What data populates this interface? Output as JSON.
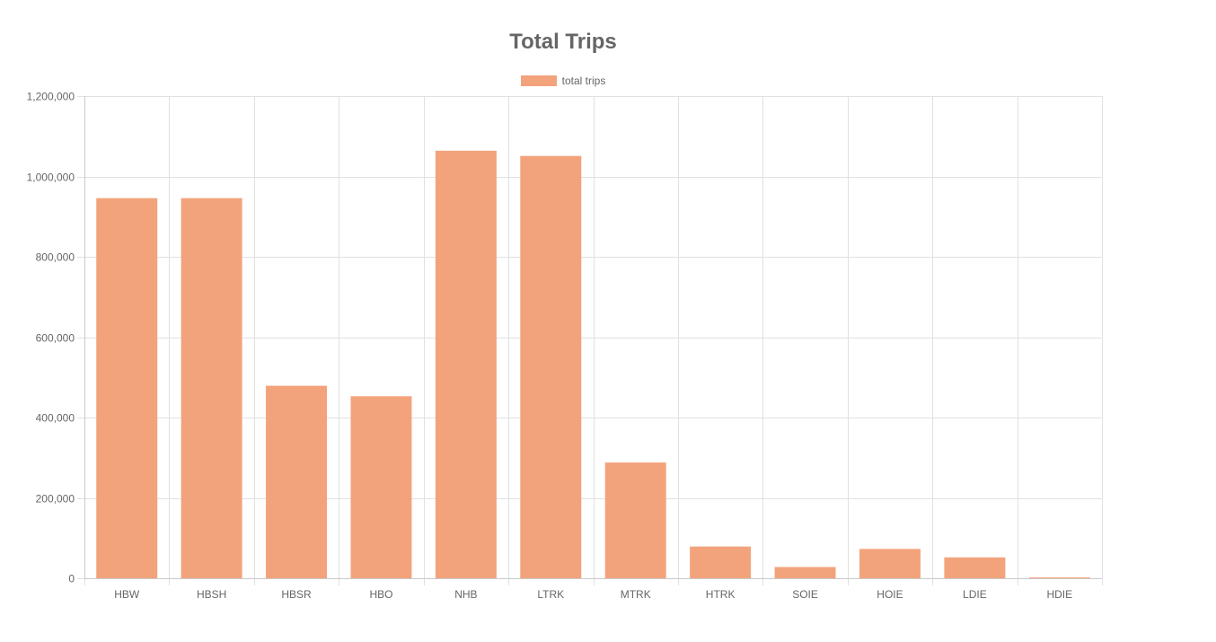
{
  "chart_data": {
    "type": "bar",
    "title": "Total Trips",
    "legend": {
      "label": "total trips",
      "placement": "top-center"
    },
    "categories": [
      "HBW",
      "HBSH",
      "HBSR",
      "HBO",
      "NHB",
      "LTRK",
      "MTRK",
      "HTRK",
      "SOIE",
      "HOIE",
      "LDIE",
      "HDIE"
    ],
    "series": [
      {
        "name": "total trips",
        "color": "#f3a37c",
        "values": [
          946000,
          946000,
          479000,
          453000,
          1064000,
          1051000,
          288000,
          79000,
          28000,
          73000,
          52000,
          2000
        ]
      }
    ],
    "ylim": [
      0,
      1200000
    ],
    "y_ticks": [
      0,
      200000,
      400000,
      600000,
      800000,
      1000000,
      1200000
    ],
    "y_tick_labels": [
      "0",
      "200,000",
      "400,000",
      "600,000",
      "800,000",
      "1,000,000",
      "1,200,000"
    ],
    "grid": true,
    "xlabel": "",
    "ylabel": ""
  }
}
